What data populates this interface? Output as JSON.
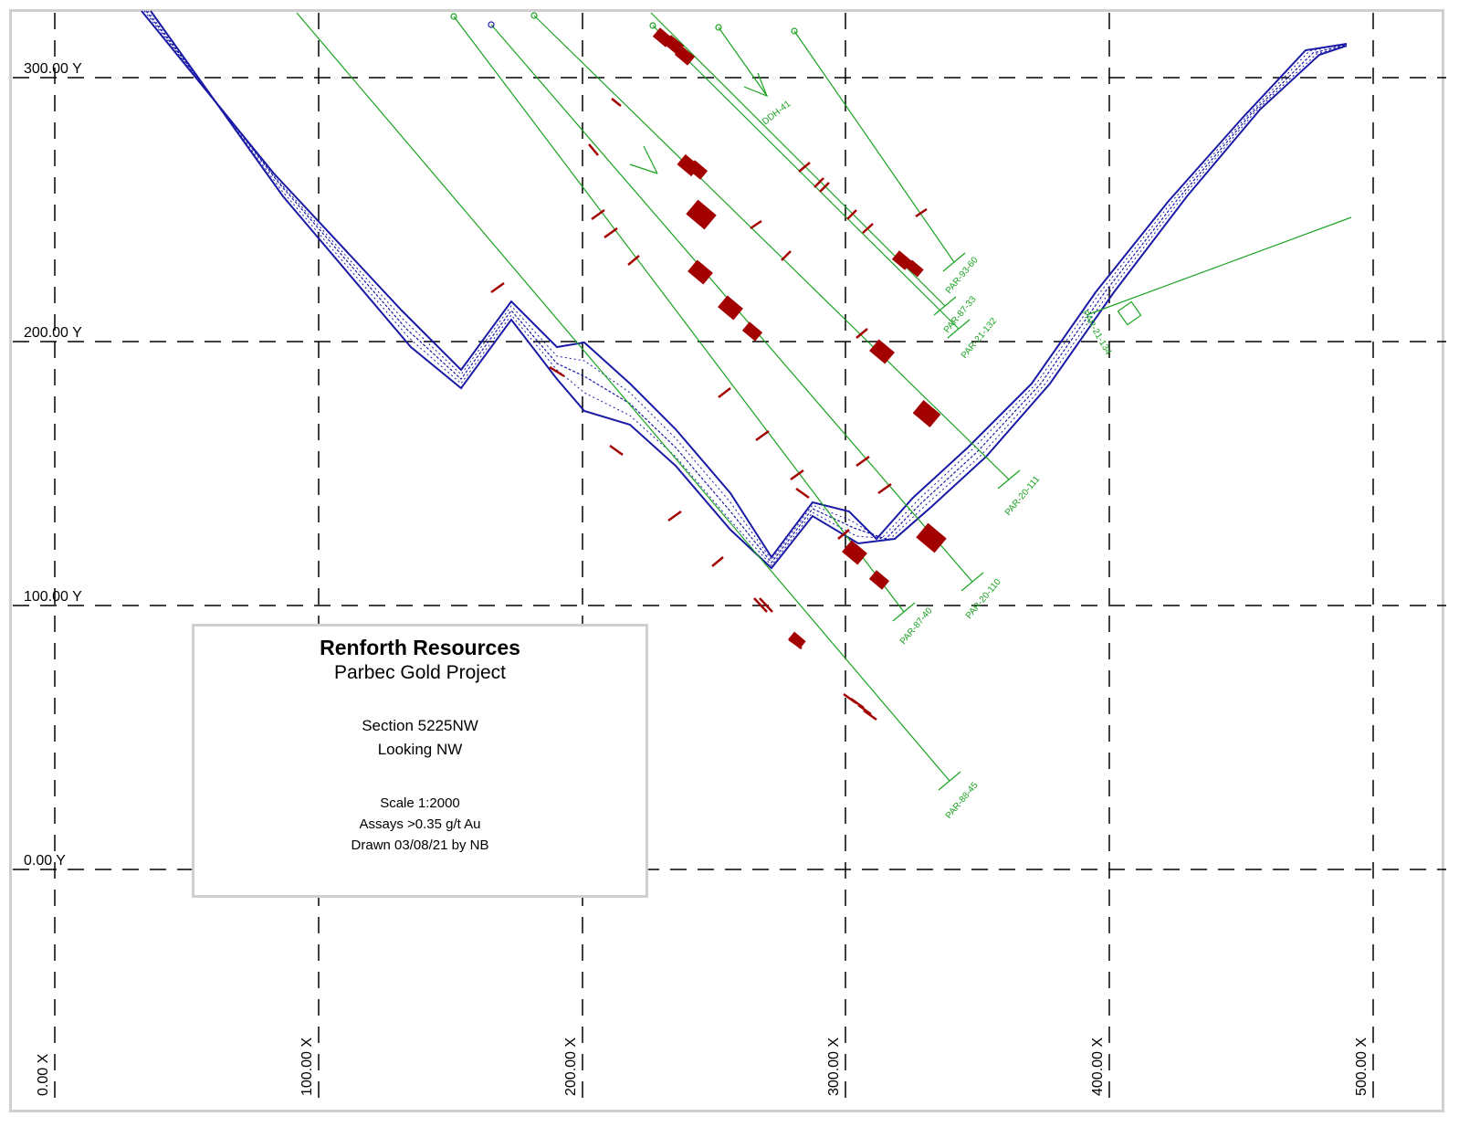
{
  "frame": {
    "name": "section-plot"
  },
  "grid": {
    "x_labels": [
      "0.00 X",
      "100.00 X",
      "200.00 X",
      "300.00 X",
      "400.00 X",
      "500.00 X"
    ],
    "y_labels": [
      "300.00 Y",
      "200.00 Y",
      "100.00 Y",
      "0.00 Y"
    ]
  },
  "title_block": {
    "company": "Renforth Resources",
    "project": "Parbec Gold Project",
    "section": "Section 5225NW",
    "looking": "Looking NW",
    "scale": "Scale 1:2000",
    "assays": "Assays >0.35 g/t Au",
    "drawn": "Drawn 03/08/21 by NB"
  },
  "drill_holes": [
    {
      "name": "DDH-41"
    },
    {
      "name": "PAR-93-60"
    },
    {
      "name": "PAR-87-33"
    },
    {
      "name": "PAR-21-132"
    },
    {
      "name": "PAR-20-111"
    },
    {
      "name": "PAR-20-110"
    },
    {
      "name": "PAR-87-40"
    },
    {
      "name": "PAR-88-45"
    },
    {
      "name": "PAR-21-134"
    }
  ],
  "colors": {
    "surface": "#1a1aa6",
    "drill_trace": "#1aa321",
    "assay": "#a30000",
    "grid": "#000000"
  }
}
